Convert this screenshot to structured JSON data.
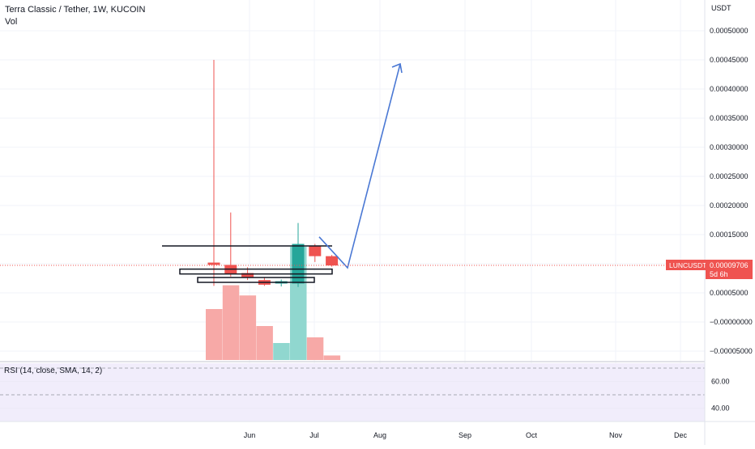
{
  "header": {
    "title": "Terra Classic / Tether, 1W, KUCOIN",
    "volume_label": "Vol"
  },
  "price_axis": {
    "currency": "USDT",
    "ticks": [
      "0.00050000",
      "0.00045000",
      "0.00040000",
      "0.00035000",
      "0.00030000",
      "0.00025000",
      "0.00020000",
      "0.00015000",
      "0.00010000",
      "0.00005000",
      "−0.00000000",
      "−0.00005000"
    ]
  },
  "symbol_badge": {
    "symbol": "LUNCUSDT",
    "price": "0.00009706",
    "countdown": "5d 6h",
    "color": "#ef5350"
  },
  "rsi_pane": {
    "label": "RSI (14, close, SMA, 14, 2)",
    "ticks": [
      "60.00",
      "40.00"
    ],
    "band_color": "#7e57c2"
  },
  "time_axis": {
    "labels": [
      "Jun",
      "Jul",
      "Aug",
      "Sep",
      "Oct",
      "Nov",
      "Dec"
    ]
  },
  "colors": {
    "up": "#26a69a",
    "down": "#ef5350",
    "vol_up": "#90d7cf",
    "vol_down": "#f7a9a7",
    "projection": "#4a78d4"
  },
  "chart_data": {
    "type": "candlestick",
    "title": "Terra Classic / Tether, 1W, KUCOIN",
    "ylabel": "USDT",
    "ylim": [
      -6e-05,
      0.00053
    ],
    "candles": [
      {
        "open": 0.000102,
        "high": 0.00045,
        "low": 6.2e-05,
        "close": 9.8e-05
      },
      {
        "open": 9.8e-05,
        "high": 0.000188,
        "low": 7.8e-05,
        "close": 8.2e-05
      },
      {
        "open": 8.4e-05,
        "high": 9.4e-05,
        "low": 7.2e-05,
        "close": 7.6e-05
      },
      {
        "open": 7.2e-05,
        "high": 7.6e-05,
        "low": 6.2e-05,
        "close": 6.4e-05
      },
      {
        "open": 6.6e-05,
        "high": 7.3e-05,
        "low": 6.1e-05,
        "close": 7e-05
      },
      {
        "open": 6.6e-05,
        "high": 0.00017,
        "low": 6e-05,
        "close": 0.000134
      },
      {
        "open": 0.00013,
        "high": 0.000134,
        "low": 0.000103,
        "close": 0.000113
      },
      {
        "open": 0.000113,
        "high": 0.000115,
        "low": 9.5e-05,
        "close": 9.7e-05
      }
    ],
    "volume_relative": [
      0.45,
      0.66,
      0.57,
      0.3,
      0.15,
      1.0,
      0.2,
      0.04
    ],
    "horizontal_levels": [
      0.000132,
      8.8e-05,
      7.5e-05
    ],
    "projection_path": [
      0.000135,
      9.3e-05,
      0.000443
    ],
    "rsi_levels": [
      70,
      60,
      50,
      40,
      30
    ]
  }
}
